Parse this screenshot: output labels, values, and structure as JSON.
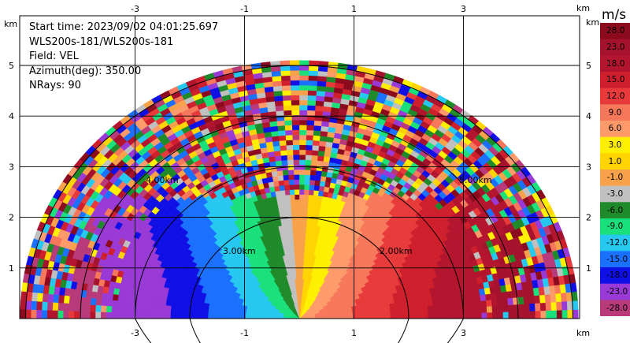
{
  "info": {
    "start_time": "Start time: 2023/09/02 04:01:25.697",
    "instrument": "WLS200s-181/WLS200s-181",
    "field": "Field: VEL",
    "azimuth": "Azimuth(deg): 350.00",
    "nrays": "NRays: 90"
  },
  "axes": {
    "x_ticks": [
      "-3",
      "-1",
      "1",
      "3"
    ],
    "y_ticks": [
      "1",
      "2",
      "3",
      "4",
      "5"
    ],
    "unit": "km"
  },
  "range_rings": [
    "2.00km",
    "3.00km",
    "4.00km",
    "5.00km"
  ],
  "colorbar": {
    "title": "m/s",
    "labels": [
      "28.0",
      "23.0",
      "18.0",
      "15.0",
      "12.0",
      "9.0",
      "6.0",
      "3.0",
      "1.0",
      "-1.0",
      "-3.0",
      "-6.0",
      "-9.0",
      "-12.0",
      "-15.0",
      "-18.0",
      "-23.0",
      "-28.0"
    ],
    "colors": [
      "#8b0a1e",
      "#a5122d",
      "#b4152e",
      "#cf1f2c",
      "#e83a3a",
      "#f7775b",
      "#ff9a6a",
      "#fff000",
      "#ffd400",
      "#f7a24a",
      "#c0c0c0",
      "#1f8a2a",
      "#19e07b",
      "#26c8f0",
      "#1a70ff",
      "#1010e6",
      "#9a3ad6",
      "#b83a7a"
    ]
  },
  "chart_data": {
    "type": "heatmap",
    "title": "",
    "field": "VEL",
    "units": "m/s",
    "x_range_km": [
      -5.5,
      5.5
    ],
    "y_range_km": [
      0,
      5.8
    ],
    "x_ticks": [
      -3,
      -1,
      1,
      3
    ],
    "y_ticks": [
      1,
      2,
      3,
      4,
      5
    ],
    "grid": true,
    "scan_type": "RHI",
    "azimuth_deg": 350.0,
    "nrays": 90,
    "range_rings_km": [
      2,
      3,
      4,
      5
    ],
    "colorbar_range": [
      -28,
      28
    ]
  }
}
